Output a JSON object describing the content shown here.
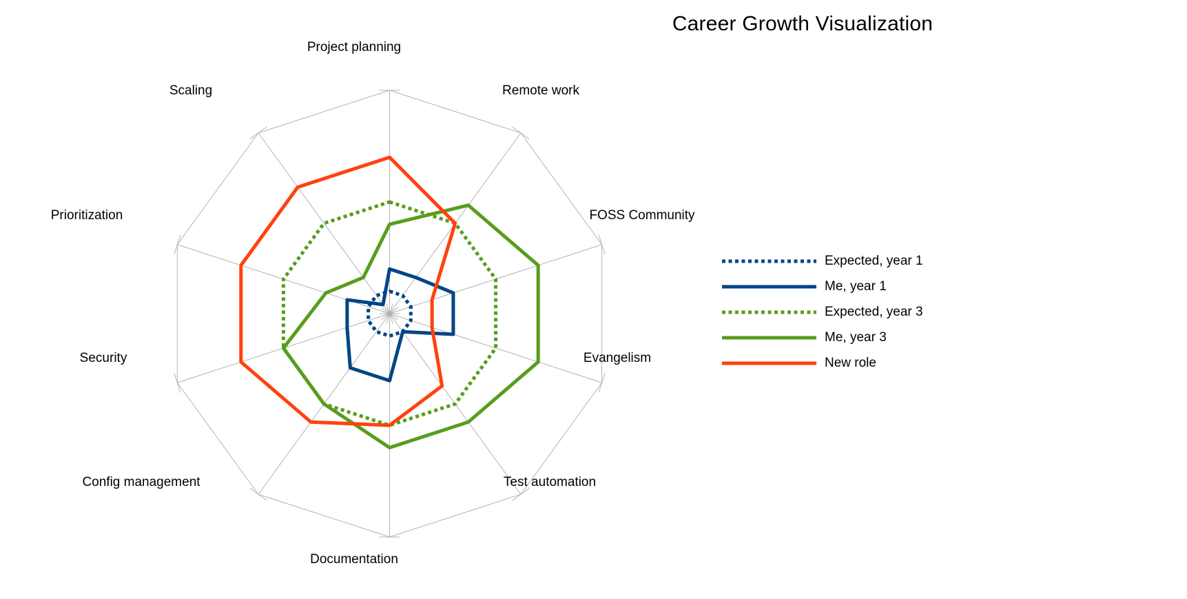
{
  "title": "Career Growth Visualization",
  "colors": {
    "background": "#ffffff",
    "grid": "#b3b3b3",
    "text": "#000000",
    "blue": "#004586",
    "green": "#579D1C",
    "orange": "#FF420E"
  },
  "chart_data": {
    "type": "radar",
    "title": "Career Growth Visualization",
    "axes": [
      "Project planning",
      "Remote work",
      "FOSS Community",
      "Evangelism",
      "Test automation",
      "Documentation",
      "Config management",
      "Security",
      "Prioritization",
      "Scaling"
    ],
    "scale": {
      "min": 0,
      "max": 10,
      "radial_tick_labels": false,
      "gridlines": "outer-polygon-and-spokes"
    },
    "legend_position": "right",
    "series": [
      {
        "name": "Expected, year 1",
        "color": "#004586",
        "line_style": "dotted",
        "values": [
          1,
          1,
          1,
          1,
          1,
          1,
          1,
          1,
          1,
          1
        ]
      },
      {
        "name": "Me, year 1",
        "color": "#004586",
        "line_style": "solid",
        "values": [
          2,
          2,
          3,
          3,
          1,
          3,
          3,
          2,
          2,
          0.5
        ]
      },
      {
        "name": "Expected, year 3",
        "color": "#579D1C",
        "line_style": "dotted",
        "values": [
          5,
          5,
          5,
          5,
          5,
          5,
          5,
          5,
          5,
          5
        ]
      },
      {
        "name": "Me, year 3",
        "color": "#579D1C",
        "line_style": "solid",
        "values": [
          4,
          6,
          7,
          7,
          6,
          6,
          5,
          5,
          3,
          2
        ]
      },
      {
        "name": "New role",
        "color": "#FF420E",
        "line_style": "solid",
        "values": [
          7,
          5,
          2,
          2,
          4,
          5,
          6,
          7,
          7,
          7
        ]
      }
    ]
  }
}
